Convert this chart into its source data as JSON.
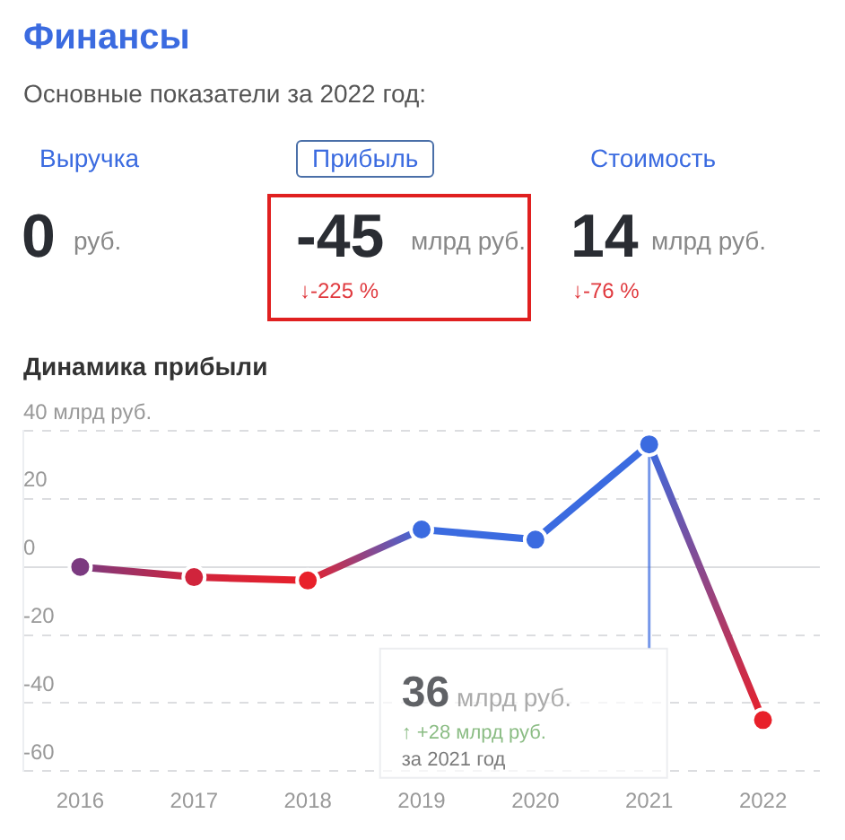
{
  "chart_data": [
    {
      "type": "other",
      "title": "Финансы",
      "subtitle": "Основные показатели за 2022 год:",
      "annotations": [
        "Выручка",
        "Прибыль",
        "Стоимость",
        "0",
        "руб.",
        "-45",
        "млрд руб.",
        "↓-225 %",
        "14",
        "млрд руб.",
        "↓-76 %"
      ]
    },
    {
      "type": "line",
      "title": "Динамика прибыли",
      "categories": [
        "2016",
        "2017",
        "2018",
        "2019",
        "2020",
        "2021",
        "2022"
      ],
      "series": [
        {
          "color": "#3b6be0",
          "colors": [
            "#7b3a80",
            "#d0243c",
            "#e8202a",
            "#3b6be0",
            "#3b6be0",
            "#3b6be0",
            "#e8202a"
          ],
          "values": [
            0,
            -3,
            -4,
            11,
            8,
            36,
            -45
          ]
        }
      ],
      "ylim": [
        -60,
        40
      ],
      "yticks": [
        {
          "value": 40,
          "label": "40 млрд руб."
        },
        20,
        0,
        -20,
        -40,
        -60
      ],
      "grid": "y",
      "marker": "circle",
      "legend": false,
      "ref_lines": [
        {
          "axis": "x",
          "value": "2021"
        }
      ],
      "annotations": [
        "36 млрд руб.",
        "↑ +28 млрд руб.",
        "за 2021 год"
      ]
    }
  ]
}
